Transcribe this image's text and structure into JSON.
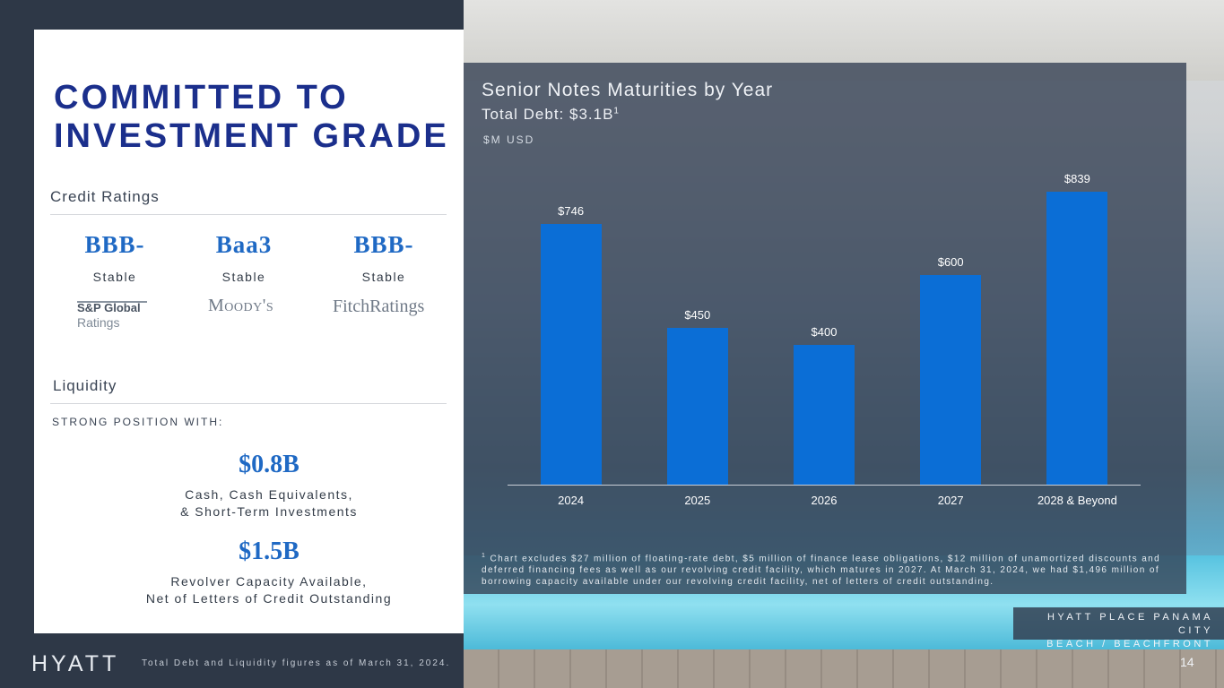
{
  "left": {
    "title_line1": "COMMITTED TO",
    "title_line2": "INVESTMENT GRADE",
    "credit_ratings_label": "Credit Ratings",
    "ratings": [
      {
        "grade": "BBB-",
        "outlook": "Stable",
        "agency_line1": "S&P Global",
        "agency_line2": "Ratings"
      },
      {
        "grade": "Baa3",
        "outlook": "Stable",
        "agency": "Moody's"
      },
      {
        "grade": "BBB-",
        "outlook": "Stable",
        "agency": "FitchRatings"
      }
    ],
    "liquidity_label": "Liquidity",
    "strong_position": "STRONG POSITION WITH:",
    "cash": {
      "amount": "$0.8B",
      "line1": "Cash, Cash Equivalents,",
      "line2": "& Short-Term Investments"
    },
    "revolver": {
      "amount": "$1.5B",
      "line1": "Revolver Capacity Available,",
      "line2": "Net of Letters of Credit Outstanding"
    }
  },
  "chart_header": {
    "title": "Senior Notes Maturities by Year",
    "subtitle": "Total Debt: $3.1B",
    "subtitle_sup": "1",
    "units": "$M USD"
  },
  "chart_data": {
    "type": "bar",
    "title": "Senior Notes Maturities by Year",
    "ylabel": "$M USD",
    "categories": [
      "2024",
      "2025",
      "2026",
      "2027",
      "2028 & Beyond"
    ],
    "values": [
      746,
      450,
      400,
      600,
      839
    ],
    "value_labels": [
      "$746",
      "$450",
      "$400",
      "$600",
      "$839"
    ],
    "ylim": [
      0,
      900
    ],
    "color": "#0b6ed6"
  },
  "footnote": {
    "sup": "1",
    "text": "Chart excludes $27 million of floating-rate debt, $5 million of finance lease obligations, $12 million of unamortized discounts and deferred financing fees as well as our revolving credit facility, which matures in 2027. At March 31, 2024, we had $1,496 million of borrowing capacity available under our revolving credit facility, net of letters of credit outstanding."
  },
  "caption": {
    "line1": "HYATT PLACE PANAMA CITY",
    "line2": "BEACH / BEACHFRONT"
  },
  "footer": {
    "logo": "HYATT",
    "note": "Total Debt and Liquidity figures as of March 31, 2024.",
    "page": "14"
  }
}
